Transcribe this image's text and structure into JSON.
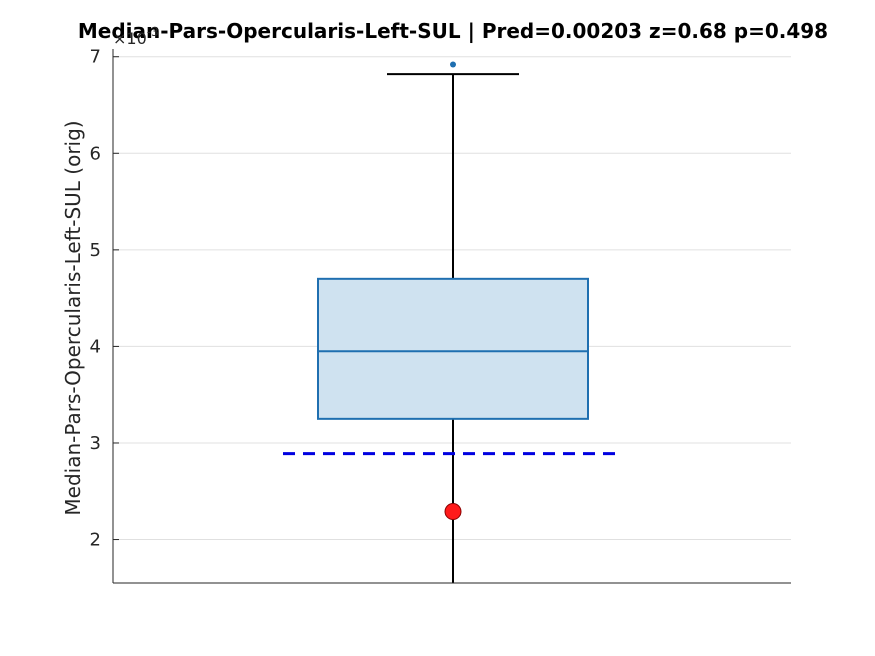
{
  "chart_data": {
    "type": "box",
    "title": "Median-Pars-Opercularis-Left-SUL  |  Pred=0.00203  z=0.68  p=0.498",
    "ylabel": "Median-Pars-Opercularis-Left-SUL (orig)",
    "y_multiplier": "×10",
    "y_multiplier_exp": "-3",
    "ylim": [
      1.55,
      7.08
    ],
    "yticks": [
      2,
      3,
      4,
      5,
      6,
      7
    ],
    "grid": true,
    "box": {
      "q1": 3.25,
      "median": 3.95,
      "q3": 4.7,
      "whisker_low": 1.55,
      "whisker_high": 6.82,
      "outliers": [
        6.92
      ]
    },
    "reference_line": {
      "y": 2.89,
      "style": "dashed",
      "color": "#0000e0"
    },
    "marker": {
      "y": 2.29,
      "color": "#ff1a1a"
    },
    "colors": {
      "box_edge": "#1f6fb0",
      "box_fill": "#cfe2f0",
      "outlier": "#1f6fb0",
      "grid": "#e0e0e0",
      "axis": "#262626"
    }
  }
}
